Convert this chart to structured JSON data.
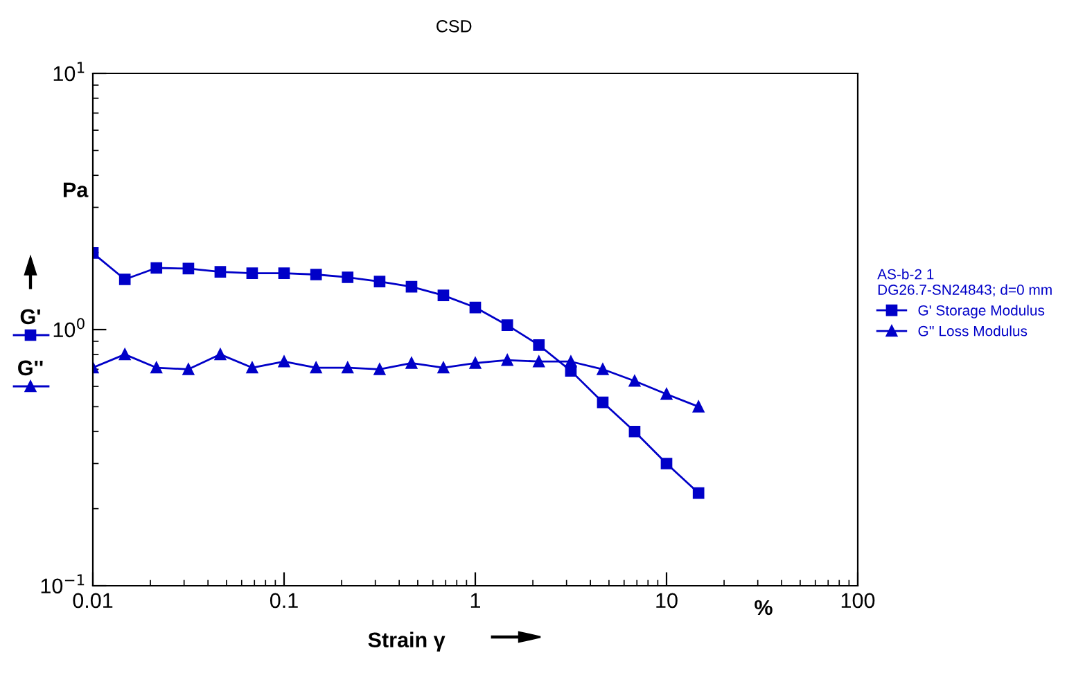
{
  "chart_data": {
    "type": "line",
    "title": "CSD",
    "xlabel": "Strain γ",
    "ylabel": "Pa",
    "legend_title": "AS-b-2 1\nDG26.7-SN24843; d=0 mm",
    "annotations": [
      "%",
      "G'",
      "G''"
    ],
    "log": "xy",
    "grid": false,
    "legend": "right",
    "line_style": "solid",
    "xlim": [
      0.01,
      100
    ],
    "xticks": [
      0.01,
      0.1,
      1,
      10,
      100
    ],
    "ylim": [
      0.1,
      10
    ],
    "yticks": [
      {
        "value": 0.1,
        "label": "10$^{−1}$"
      },
      {
        "value": 1,
        "label": "10$^{0}$"
      },
      {
        "value": 10,
        "label": "10$^{1}$"
      }
    ],
    "x": [
      0.01,
      0.0147,
      0.0215,
      0.0316,
      0.0464,
      0.0681,
      0.1,
      0.147,
      0.215,
      0.316,
      0.464,
      0.681,
      1,
      1.47,
      2.15,
      3.16,
      4.64,
      6.81,
      10,
      14.7
    ],
    "series": [
      {
        "name": "G' Storage Modulus",
        "color": "#0000c8",
        "marker": "square",
        "values": [
          1.99,
          1.57,
          1.74,
          1.73,
          1.68,
          1.66,
          1.66,
          1.64,
          1.6,
          1.54,
          1.47,
          1.36,
          1.22,
          1.04,
          0.87,
          0.69,
          0.52,
          0.4,
          0.3,
          0.23
        ]
      },
      {
        "name": "G'' Loss Modulus",
        "color": "#0000c8",
        "marker": "triangle",
        "values": [
          0.71,
          0.8,
          0.71,
          0.7,
          0.8,
          0.71,
          0.75,
          0.71,
          0.71,
          0.7,
          0.74,
          0.71,
          0.74,
          0.76,
          0.75,
          0.75,
          0.7,
          0.63,
          0.56,
          0.5
        ]
      }
    ]
  }
}
